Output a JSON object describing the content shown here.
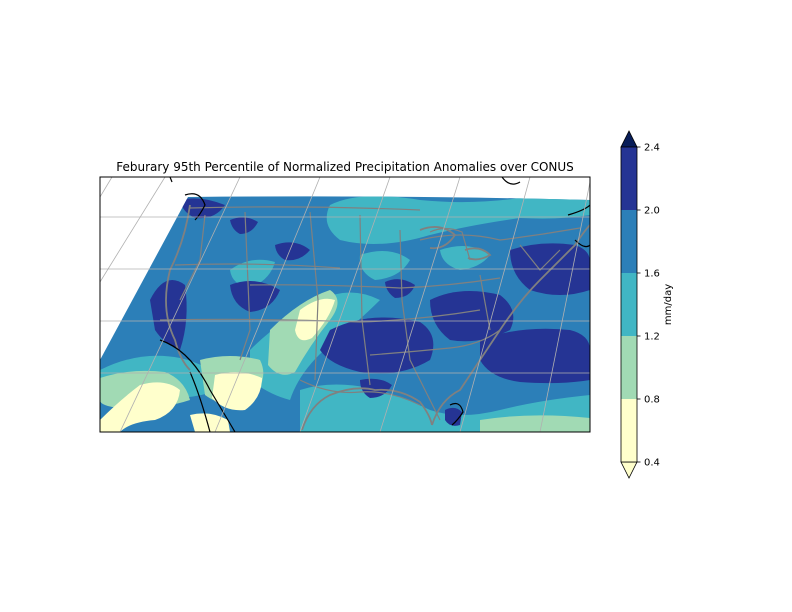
{
  "title": "Feburary 95th Percentile of Normalized Precipitation Anomalies over CONUS",
  "colorbar": {
    "label": "mm/day",
    "ticks": [
      "0.4",
      "0.8",
      "1.2",
      "1.6",
      "2.0",
      "2.4"
    ],
    "levels": [
      0.4,
      0.8,
      1.2,
      1.6,
      2.0,
      2.4
    ],
    "colors": [
      "#ffffcc",
      "#a1dab4",
      "#41b6c4",
      "#2c7fb8",
      "#253494"
    ],
    "extend_low_color": "#ffffcc",
    "extend_high_color": "#081d58"
  },
  "map": {
    "region": "CONUS",
    "projection": "conic",
    "gridlines": true,
    "borders": "state and country borders",
    "colors": {
      "border": "#808080",
      "coastline": "#000000",
      "gridline": "#b0b0b0"
    }
  }
}
